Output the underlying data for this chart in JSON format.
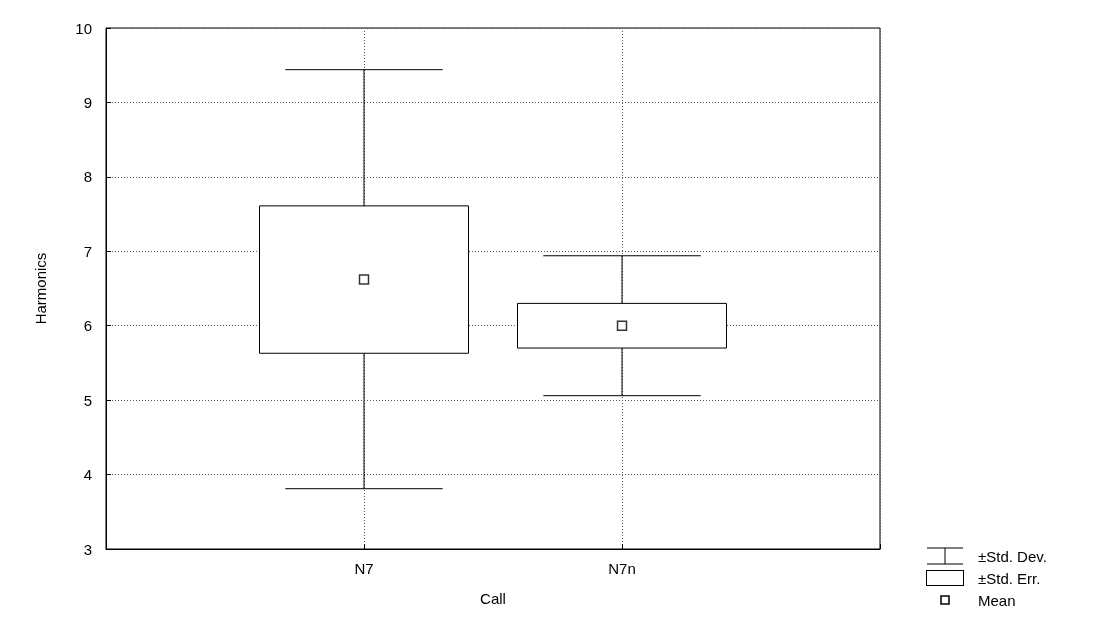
{
  "chart_data": {
    "type": "box",
    "xlabel": "Call",
    "ylabel": "Harmonics",
    "categories": [
      "N7",
      "N7n"
    ],
    "boxes": [
      {
        "low": 3.81,
        "q1": 5.63,
        "q3": 7.61,
        "high": 9.44,
        "mean": 6.62
      },
      {
        "low": 5.06,
        "q1": 5.7,
        "q3": 6.3,
        "high": 6.94,
        "mean": 6.0
      }
    ],
    "annotations": [
      "±Std. Dev.",
      "±Std. Err.",
      "Mean"
    ],
    "ylim": [
      3,
      10
    ],
    "yticks": [
      3,
      4,
      5,
      6,
      7,
      8,
      9,
      10
    ],
    "grid": true,
    "marker": "square"
  }
}
